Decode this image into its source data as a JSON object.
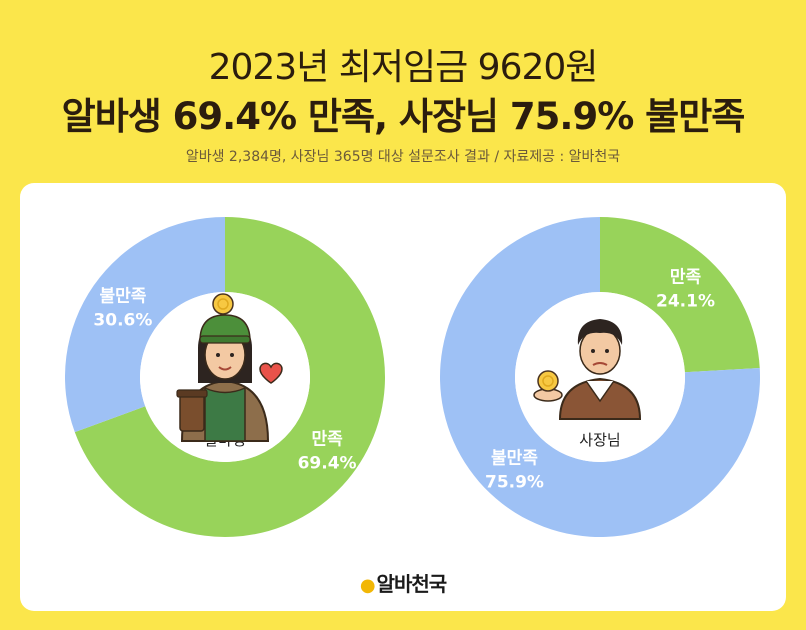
{
  "header": {
    "title_line1": "2023년 최저임금 9620원",
    "title_line2": "알바생 69.4% 만족, 사장님 75.9% 불만족",
    "subtitle": "알바생 2,384명, 사장님 365명 대상 설문조사 결과 / 자료제공 : 알바천국"
  },
  "colors": {
    "background": "#fbe64b",
    "satisfied": "#98d35a",
    "dissatisfied": "#9ec1f5",
    "label_text": "#ffffff"
  },
  "chart_data": [
    {
      "type": "pie",
      "center_label": "알바생",
      "slices": [
        {
          "label": "만족",
          "value": 69.4,
          "value_text": "69.4%",
          "color": "#98d35a"
        },
        {
          "label": "불만족",
          "value": 30.6,
          "value_text": "30.6%",
          "color": "#9ec1f5"
        }
      ]
    },
    {
      "type": "pie",
      "center_label": "사장님",
      "slices": [
        {
          "label": "만족",
          "value": 24.1,
          "value_text": "24.1%",
          "color": "#98d35a"
        },
        {
          "label": "불만족",
          "value": 75.9,
          "value_text": "75.9%",
          "color": "#9ec1f5"
        }
      ]
    }
  ],
  "footer": {
    "logo_text": "알바천국"
  }
}
